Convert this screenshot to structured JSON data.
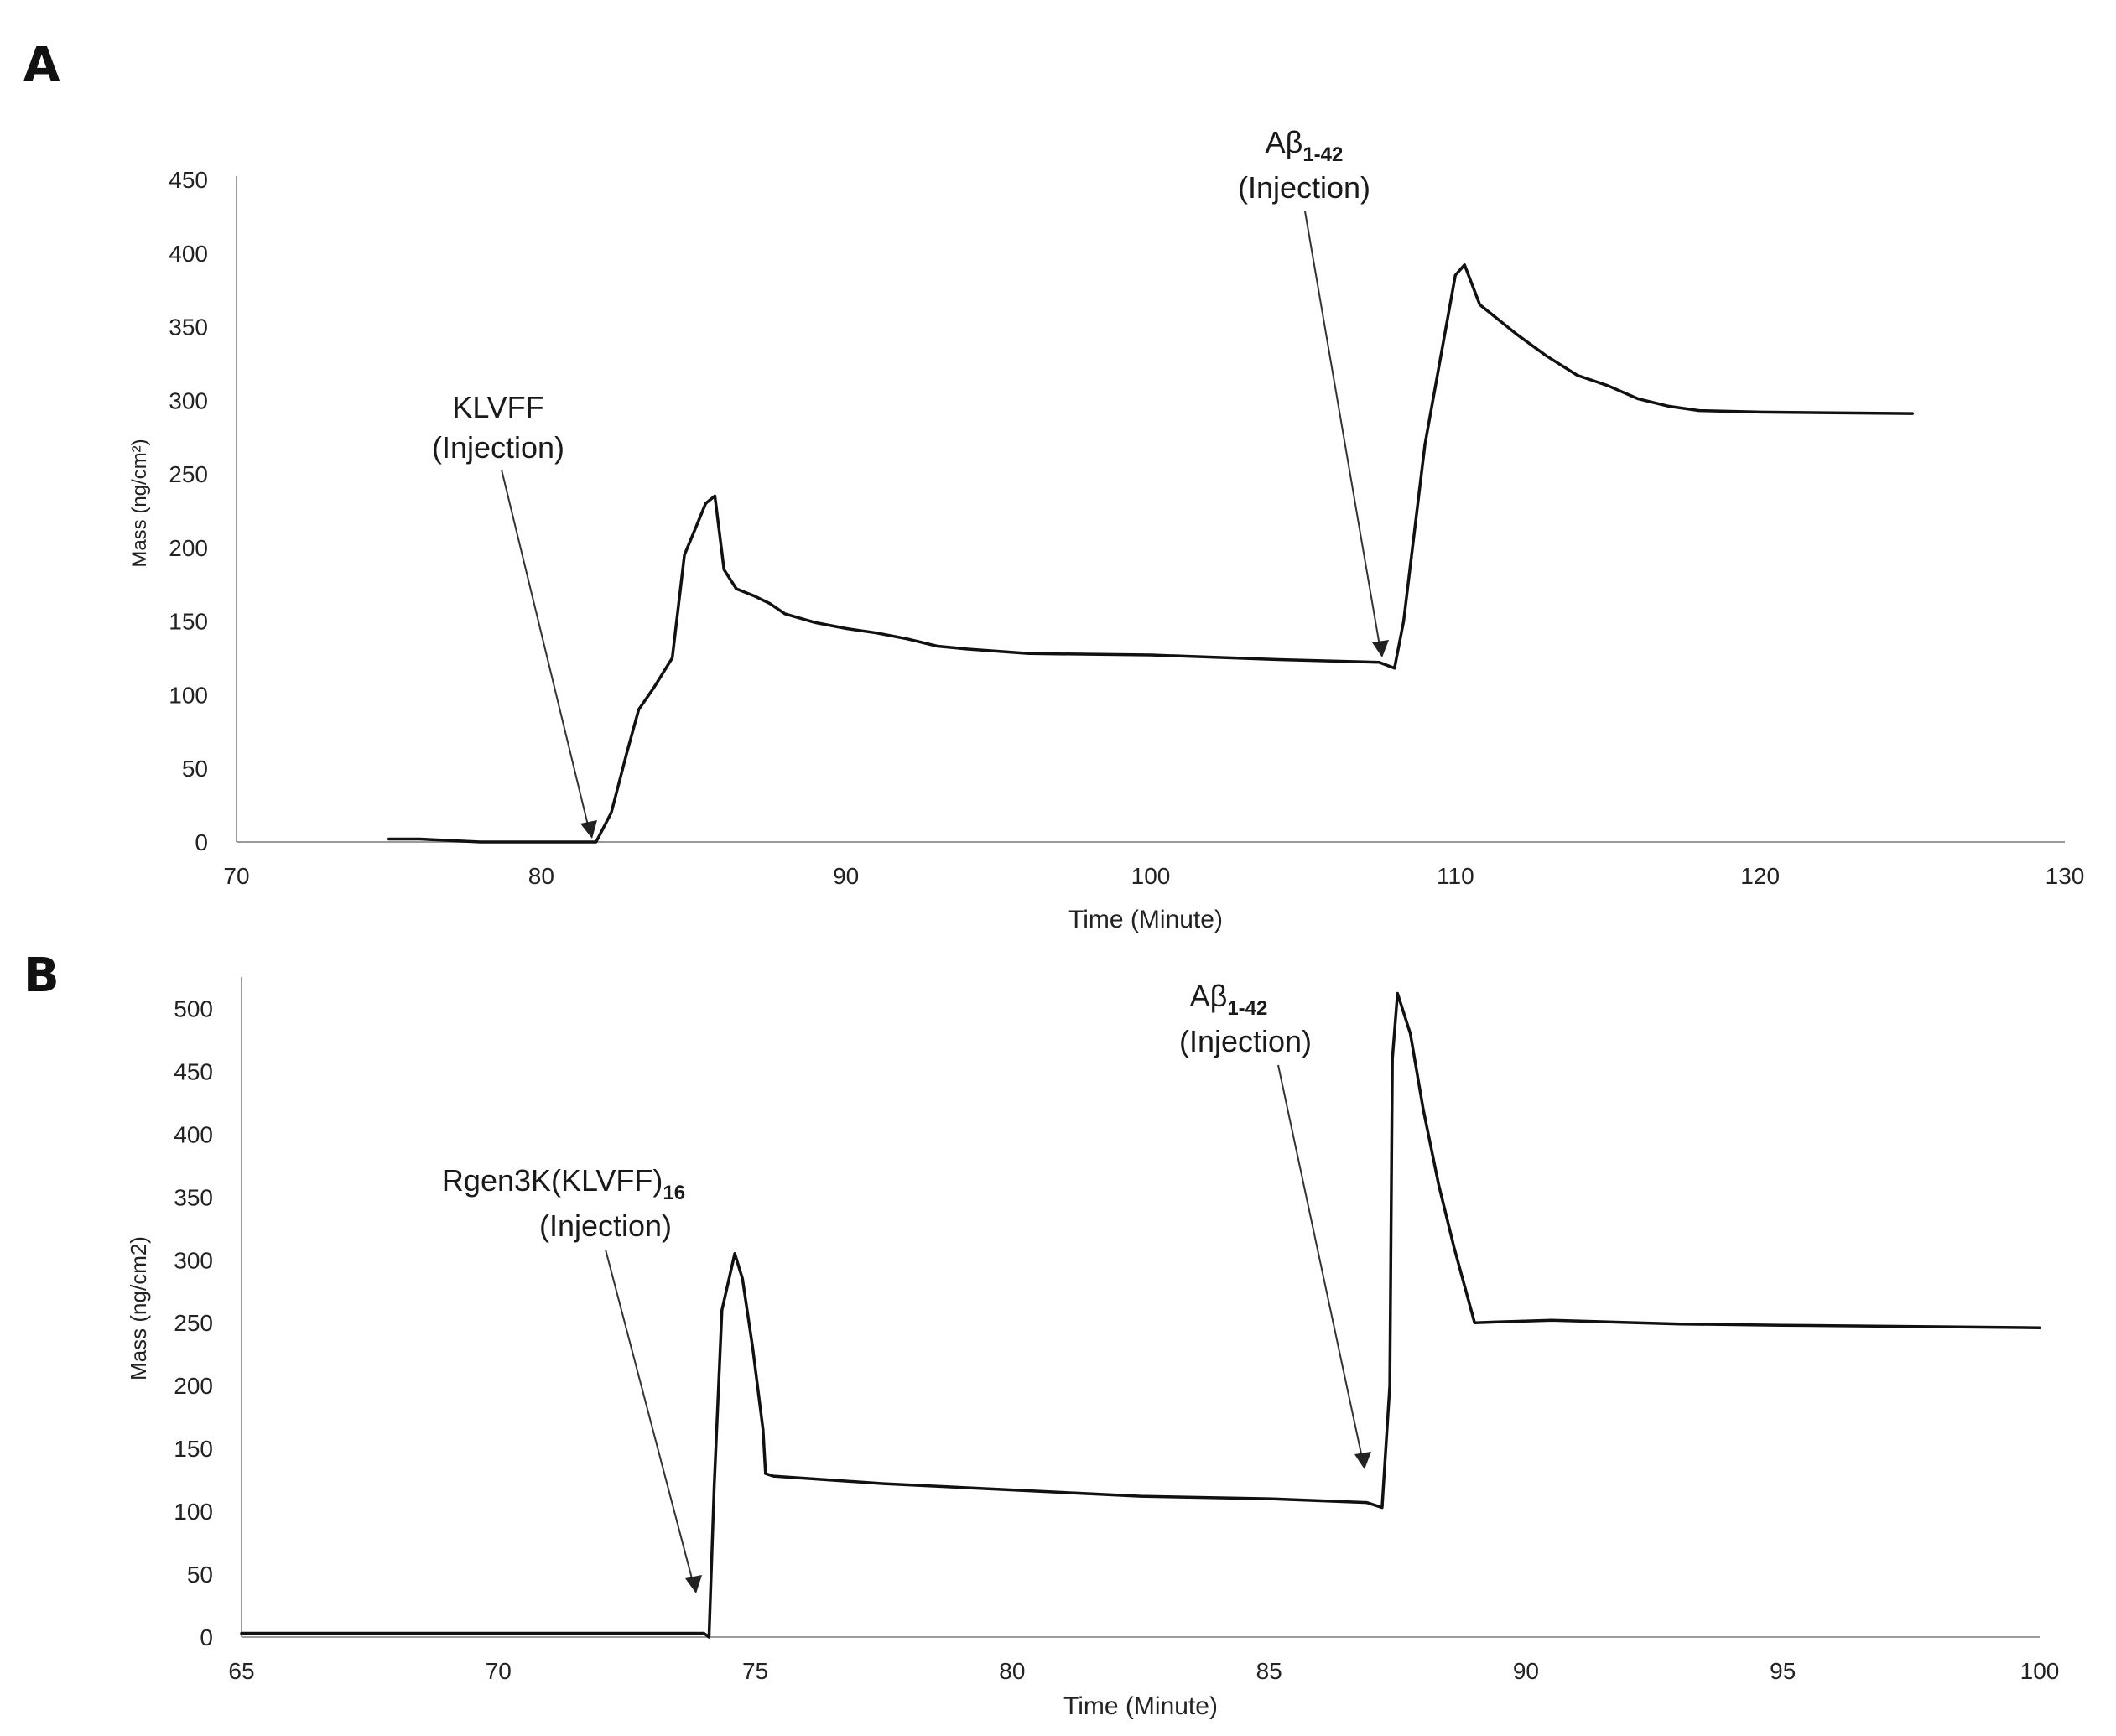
{
  "chart_data": [
    {
      "panel": "A",
      "type": "line",
      "title": "",
      "xlabel": "Time (Minute)",
      "ylabel": "Mass (ng/cm²)",
      "xlim": [
        70,
        130
      ],
      "ylim": [
        0,
        450
      ],
      "xticks": [
        70,
        80,
        90,
        100,
        110,
        120,
        130
      ],
      "yticks": [
        0,
        50,
        100,
        150,
        200,
        250,
        300,
        350,
        400,
        450
      ],
      "grid": false,
      "series": [
        {
          "x": [
            75,
            76,
            77,
            78,
            79,
            80,
            81,
            81.8,
            82.3,
            82.8,
            83.2,
            83.7,
            84.3,
            84.7,
            85.0,
            85.4,
            85.7,
            86.0,
            86.4,
            87.0,
            87.5,
            88.0,
            89.0,
            90.0,
            91.0,
            92.0,
            93.0,
            94.0,
            96.0,
            100.0,
            104.0,
            107.5,
            108.0,
            108.3,
            109.0,
            110.0,
            110.3,
            110.8,
            112.0,
            113.0,
            114.0,
            115.0,
            116.0,
            117.0,
            118.0,
            120.0,
            125.0
          ],
          "y": [
            2,
            2,
            1,
            0,
            0,
            0,
            0,
            0,
            20,
            60,
            90,
            105,
            125,
            195,
            210,
            230,
            235,
            185,
            172,
            167,
            162,
            155,
            149,
            145,
            142,
            138,
            133,
            131,
            128,
            127,
            124,
            122,
            118,
            150,
            270,
            385,
            392,
            365,
            345,
            330,
            317,
            310,
            301,
            296,
            293,
            292,
            291
          ]
        }
      ],
      "annotations": [
        {
          "id": "klvff",
          "line1": "KLVFF",
          "line2": "(Injection)",
          "x": 81.8,
          "y": 0
        },
        {
          "id": "abeta",
          "line1_main": "Aβ",
          "line1_sub": "1-42",
          "line2": "(Injection)",
          "x": 107.5,
          "y": 122
        }
      ]
    },
    {
      "panel": "B",
      "type": "line",
      "title": "",
      "xlabel": "Time (Minute)",
      "ylabel": "Mass (ng/cm2)",
      "xlim": [
        65,
        100
      ],
      "ylim": [
        0,
        525
      ],
      "xticks": [
        65,
        70,
        75,
        80,
        85,
        90,
        95,
        100
      ],
      "yticks": [
        0,
        50,
        100,
        150,
        200,
        250,
        300,
        350,
        400,
        450,
        500
      ],
      "grid": false,
      "series": [
        {
          "x": [
            65,
            68,
            71,
            74.0,
            74.1,
            74.2,
            74.35,
            74.6,
            74.75,
            74.95,
            75.15,
            75.2,
            75.35,
            77.5,
            80.0,
            82.5,
            85.0,
            86.9,
            87.2,
            87.35,
            87.4,
            87.5,
            87.75,
            88.0,
            88.3,
            88.6,
            89.0,
            90.5,
            93.0,
            95.0,
            100.0
          ],
          "y": [
            3,
            3,
            3,
            3,
            0,
            120,
            260,
            305,
            285,
            230,
            165,
            130,
            128,
            122,
            117,
            112,
            110,
            107,
            103,
            200,
            460,
            512,
            480,
            420,
            360,
            310,
            250,
            252,
            249,
            248,
            246
          ]
        }
      ],
      "annotations": [
        {
          "id": "rgen",
          "line1_main": "Rgen3K(KLVFF)",
          "line1_sub": "16",
          "line2": "(Injection)",
          "x": 74.0,
          "y": 3
        },
        {
          "id": "abeta",
          "line1_main": "Aβ",
          "line1_sub": "1-42",
          "line2": "(Injection)",
          "x": 87.0,
          "y": 107
        }
      ]
    }
  ]
}
